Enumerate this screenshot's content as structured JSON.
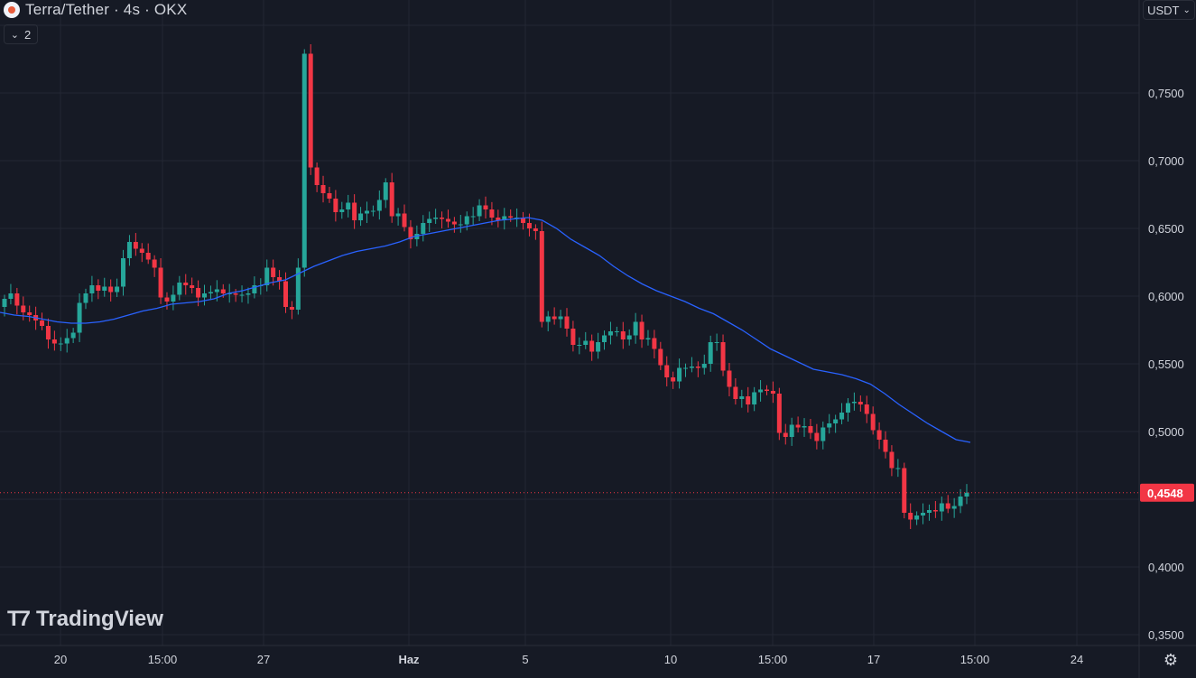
{
  "header": {
    "title": "Terra/Tether · 4s · OKX",
    "indicator_count": "2",
    "currency": "USDT"
  },
  "watermark": "TradingView",
  "colors": {
    "background": "#161a25",
    "grid": "#232734",
    "up": "#26a69a",
    "down": "#f23645",
    "ma": "#2962ff",
    "text": "#d1d4dc"
  },
  "chart_data": {
    "type": "candlestick",
    "price_axis": {
      "ticks": [
        "0,7500",
        "0,7000",
        "0,6500",
        "0,6000",
        "0,5500",
        "0,5000",
        "0,4000",
        "0,3500"
      ],
      "ylim": [
        0.35,
        0.82
      ]
    },
    "time_axis": {
      "ticks": [
        "20",
        "15:00",
        "27",
        "Haz",
        "5",
        "10",
        "15:00",
        "17",
        "15:00",
        "24"
      ]
    },
    "last_price": {
      "label": "0,4548",
      "value": 0.4548
    },
    "series": [
      {
        "name": "price",
        "closes": [
          0.598,
          0.602,
          0.593,
          0.588,
          0.586,
          0.582,
          0.578,
          0.568,
          0.565,
          0.565,
          0.569,
          0.573,
          0.595,
          0.602,
          0.608,
          0.604,
          0.607,
          0.603,
          0.607,
          0.628,
          0.64,
          0.635,
          0.632,
          0.627,
          0.621,
          0.599,
          0.596,
          0.601,
          0.61,
          0.608,
          0.606,
          0.599,
          0.602,
          0.603,
          0.605,
          0.602,
          0.602,
          0.601,
          0.601,
          0.602,
          0.608,
          0.608,
          0.621,
          0.614,
          0.611,
          0.592,
          0.59,
          0.621,
          0.779,
          0.695,
          0.682,
          0.676,
          0.672,
          0.662,
          0.664,
          0.669,
          0.656,
          0.661,
          0.663,
          0.663,
          0.671,
          0.684,
          0.659,
          0.661,
          0.651,
          0.642,
          0.646,
          0.654,
          0.657,
          0.658,
          0.657,
          0.655,
          0.653,
          0.653,
          0.659,
          0.659,
          0.667,
          0.664,
          0.658,
          0.656,
          0.659,
          0.658,
          0.658,
          0.654,
          0.65,
          0.648,
          0.581,
          0.585,
          0.583,
          0.585,
          0.576,
          0.564,
          0.564,
          0.567,
          0.559,
          0.566,
          0.571,
          0.574,
          0.574,
          0.568,
          0.571,
          0.581,
          0.568,
          0.569,
          0.561,
          0.549,
          0.54,
          0.537,
          0.547,
          0.547,
          0.548,
          0.547,
          0.55,
          0.566,
          0.566,
          0.545,
          0.533,
          0.524,
          0.526,
          0.52,
          0.529,
          0.531,
          0.53,
          0.528,
          0.499,
          0.496,
          0.505,
          0.503,
          0.504,
          0.499,
          0.493,
          0.503,
          0.506,
          0.509,
          0.514,
          0.521,
          0.522,
          0.52,
          0.513,
          0.501,
          0.494,
          0.485,
          0.473,
          0.473,
          0.44,
          0.435,
          0.438,
          0.44,
          0.442,
          0.441,
          0.447,
          0.443,
          0.445,
          0.452,
          0.4548
        ]
      },
      {
        "name": "ma",
        "values": [
          0.588,
          0.586,
          0.585,
          0.583,
          0.581,
          0.58,
          0.58,
          0.581,
          0.583,
          0.586,
          0.589,
          0.591,
          0.594,
          0.595,
          0.596,
          0.598,
          0.602,
          0.604,
          0.607,
          0.61,
          0.612,
          0.617,
          0.622,
          0.626,
          0.63,
          0.633,
          0.635,
          0.637,
          0.64,
          0.644,
          0.646,
          0.648,
          0.65,
          0.652,
          0.654,
          0.656,
          0.657,
          0.658,
          0.656,
          0.65,
          0.642,
          0.636,
          0.63,
          0.622,
          0.615,
          0.609,
          0.604,
          0.6,
          0.596,
          0.591,
          0.587,
          0.581,
          0.575,
          0.568,
          0.561,
          0.556,
          0.551,
          0.546,
          0.544,
          0.542,
          0.539,
          0.535,
          0.528,
          0.52,
          0.513,
          0.506,
          0.5,
          0.494,
          0.492
        ]
      }
    ]
  }
}
